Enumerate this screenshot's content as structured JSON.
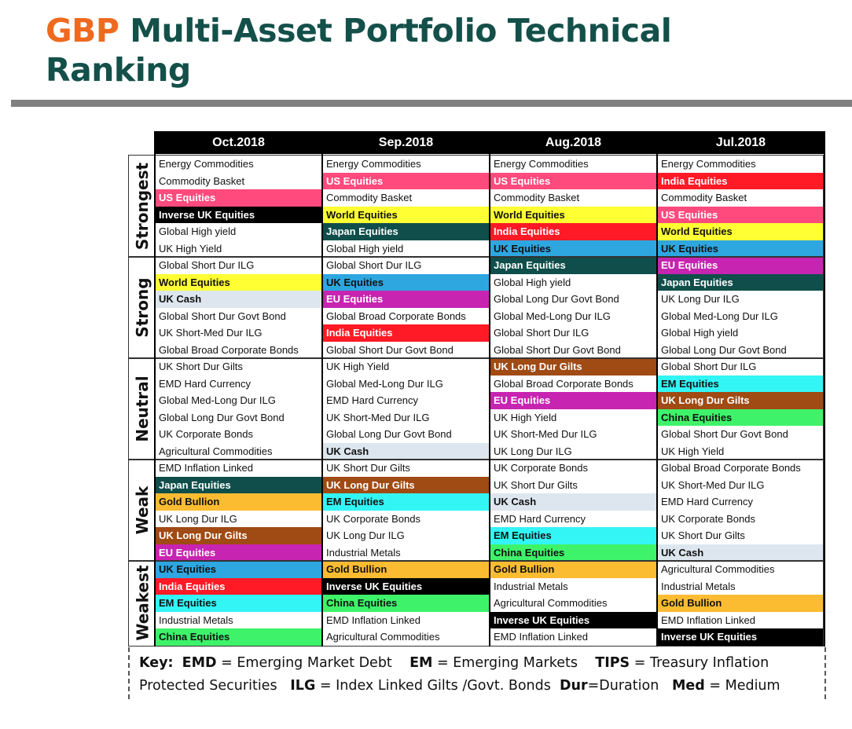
{
  "title": {
    "accent": "GBP",
    "rest": " Multi-Asset Portfolio Technical Ranking"
  },
  "columns": [
    "Oct.2018",
    "Sep.2018",
    "Aug.2018",
    "Jul.2018"
  ],
  "groups": [
    "Strongest",
    "Strong",
    "Neutral",
    "Weak",
    "Weakest"
  ],
  "colors": {
    "pink": "#ff4a7d",
    "black": "#000000",
    "yellow": "#ffff33",
    "teal": "#0f4e4a",
    "blue": "#2ea6e0",
    "lightgray": "#dde6ee",
    "magenta": "#c724b1",
    "red": "#ff1a26",
    "brown": "#a04a14",
    "cyan": "#33f5f5",
    "green": "#3ef36a",
    "orange": "#fbbc32"
  },
  "table": [
    [
      {
        "t": "Energy Commodities"
      },
      {
        "t": "Commodity Basket"
      },
      {
        "t": "US Equities",
        "c": "pink"
      },
      {
        "t": "Inverse UK Equities",
        "c": "black"
      },
      {
        "t": "Global High yield"
      },
      {
        "t": "UK High Yield"
      },
      {
        "t": "Global Short Dur ILG"
      },
      {
        "t": "World Equities",
        "c": "yellow"
      },
      {
        "t": "UK Cash",
        "c": "lightgray"
      },
      {
        "t": "Global Short Dur Govt Bond"
      },
      {
        "t": "UK Short-Med Dur ILG"
      },
      {
        "t": "Global Broad Corporate Bonds"
      },
      {
        "t": "UK Short Dur Gilts"
      },
      {
        "t": "EMD Hard Currency"
      },
      {
        "t": "Global Med-Long Dur ILG"
      },
      {
        "t": "Global Long Dur Govt Bond"
      },
      {
        "t": "UK Corporate Bonds"
      },
      {
        "t": "Agricultural Commodities"
      },
      {
        "t": "EMD Inflation Linked"
      },
      {
        "t": "Japan Equities",
        "c": "teal"
      },
      {
        "t": "Gold Bullion",
        "c": "orange"
      },
      {
        "t": "UK Long Dur ILG"
      },
      {
        "t": "UK Long Dur Gilts",
        "c": "brown"
      },
      {
        "t": "EU Equities",
        "c": "magenta"
      },
      {
        "t": "UK Equities",
        "c": "blue"
      },
      {
        "t": "India Equities",
        "c": "red"
      },
      {
        "t": "EM Equities",
        "c": "cyan"
      },
      {
        "t": "Industrial Metals"
      },
      {
        "t": "China Equities",
        "c": "green"
      }
    ],
    [
      {
        "t": "Energy Commodities"
      },
      {
        "t": "US Equities",
        "c": "pink"
      },
      {
        "t": "Commodity Basket"
      },
      {
        "t": "World Equities",
        "c": "yellow"
      },
      {
        "t": "Japan Equities",
        "c": "teal"
      },
      {
        "t": "Global High yield"
      },
      {
        "t": "Global Short Dur ILG"
      },
      {
        "t": "UK Equities",
        "c": "blue"
      },
      {
        "t": "EU Equities",
        "c": "magenta"
      },
      {
        "t": "Global Broad Corporate Bonds"
      },
      {
        "t": "India Equities",
        "c": "red"
      },
      {
        "t": "Global Short Dur Govt Bond"
      },
      {
        "t": "UK High Yield"
      },
      {
        "t": "Global Med-Long Dur ILG"
      },
      {
        "t": "EMD Hard Currency"
      },
      {
        "t": "UK Short-Med Dur ILG"
      },
      {
        "t": "Global Long Dur Govt Bond"
      },
      {
        "t": "UK Cash",
        "c": "lightgray"
      },
      {
        "t": "UK Short Dur Gilts"
      },
      {
        "t": "UK Long Dur Gilts",
        "c": "brown"
      },
      {
        "t": "EM Equities",
        "c": "cyan"
      },
      {
        "t": "UK Corporate Bonds"
      },
      {
        "t": "UK Long Dur ILG"
      },
      {
        "t": "Industrial Metals"
      },
      {
        "t": "Gold Bullion",
        "c": "orange"
      },
      {
        "t": "Inverse UK Equities",
        "c": "black"
      },
      {
        "t": "China Equities",
        "c": "green"
      },
      {
        "t": "EMD Inflation Linked"
      },
      {
        "t": "Agricultural Commodities"
      }
    ],
    [
      {
        "t": "Energy Commodities"
      },
      {
        "t": "US Equities",
        "c": "pink"
      },
      {
        "t": "Commodity Basket"
      },
      {
        "t": "World Equities",
        "c": "yellow"
      },
      {
        "t": "India Equities",
        "c": "red"
      },
      {
        "t": "UK Equities",
        "c": "blue"
      },
      {
        "t": "Japan Equities",
        "c": "teal"
      },
      {
        "t": "Global High yield"
      },
      {
        "t": "Global Long Dur Govt Bond"
      },
      {
        "t": "Global Med-Long Dur ILG"
      },
      {
        "t": "Global Short Dur ILG"
      },
      {
        "t": "Global Short Dur Govt Bond"
      },
      {
        "t": "UK Long Dur Gilts",
        "c": "brown"
      },
      {
        "t": "Global Broad Corporate Bonds"
      },
      {
        "t": "EU Equities",
        "c": "magenta"
      },
      {
        "t": "UK High Yield"
      },
      {
        "t": "UK Short-Med Dur ILG"
      },
      {
        "t": "UK Long Dur ILG"
      },
      {
        "t": "UK Corporate Bonds"
      },
      {
        "t": "UK Short Dur Gilts"
      },
      {
        "t": "UK Cash",
        "c": "lightgray"
      },
      {
        "t": "EMD Hard Currency"
      },
      {
        "t": "EM Equities",
        "c": "cyan"
      },
      {
        "t": "China Equities",
        "c": "green"
      },
      {
        "t": "Gold Bullion",
        "c": "orange"
      },
      {
        "t": "Industrial Metals"
      },
      {
        "t": "Agricultural Commodities"
      },
      {
        "t": "Inverse UK Equities",
        "c": "black"
      },
      {
        "t": "EMD Inflation Linked"
      }
    ],
    [
      {
        "t": "Energy Commodities"
      },
      {
        "t": "India Equities",
        "c": "red"
      },
      {
        "t": "Commodity Basket"
      },
      {
        "t": "US Equities",
        "c": "pink"
      },
      {
        "t": "World Equities",
        "c": "yellow"
      },
      {
        "t": "UK Equities",
        "c": "blue"
      },
      {
        "t": "EU Equities",
        "c": "magenta"
      },
      {
        "t": "Japan Equities",
        "c": "teal"
      },
      {
        "t": "UK Long Dur ILG"
      },
      {
        "t": "Global Med-Long Dur ILG"
      },
      {
        "t": "Global High yield"
      },
      {
        "t": "Global Long Dur Govt Bond"
      },
      {
        "t": "Global Short Dur ILG"
      },
      {
        "t": "EM Equities",
        "c": "cyan"
      },
      {
        "t": "UK Long Dur Gilts",
        "c": "brown"
      },
      {
        "t": "China Equities",
        "c": "green"
      },
      {
        "t": "Global Short Dur Govt Bond"
      },
      {
        "t": "UK High Yield"
      },
      {
        "t": "Global Broad Corporate Bonds"
      },
      {
        "t": "UK Short-Med Dur ILG"
      },
      {
        "t": "EMD Hard Currency"
      },
      {
        "t": "UK Corporate Bonds"
      },
      {
        "t": "UK Short Dur Gilts"
      },
      {
        "t": "UK Cash",
        "c": "lightgray"
      },
      {
        "t": "Agricultural Commodities"
      },
      {
        "t": "Industrial Metals"
      },
      {
        "t": "Gold Bullion",
        "c": "orange"
      },
      {
        "t": "EMD Inflation Linked"
      },
      {
        "t": "Inverse UK Equities",
        "c": "black"
      }
    ]
  ],
  "key": {
    "k1": "Key:",
    "b1": "EMD",
    "t1": " = Emerging Market Debt",
    "b2": "EM",
    "t2": " = Emerging Markets",
    "b3": "TIPS",
    "t3": " = Treasury Inflation Protected Securities",
    "b4": "ILG",
    "t4": " = Index Linked Gilts /Govt. Bonds",
    "b5": "Dur",
    "t5": "=Duration",
    "b6": "Med",
    "t6": " = Medium"
  }
}
